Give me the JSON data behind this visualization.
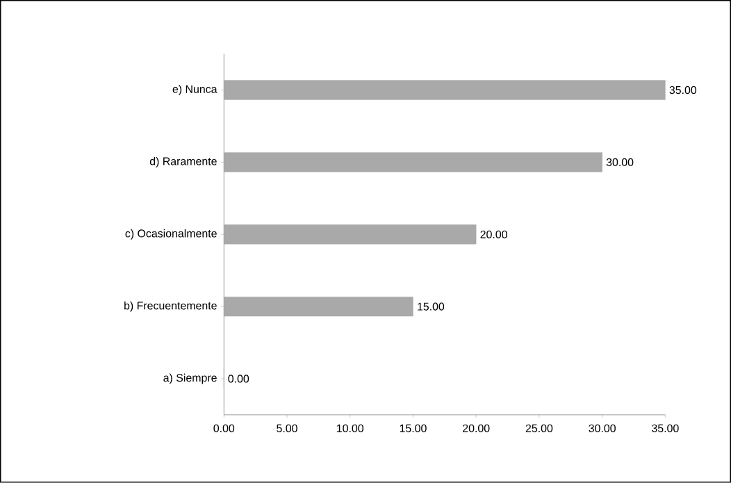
{
  "chart_data": {
    "type": "bar",
    "orientation": "horizontal",
    "categories": [
      "e) Nunca",
      "d) Raramente",
      "c) Ocasionalmente",
      "b) Frecuentemente",
      "a) Siempre"
    ],
    "values": [
      35,
      30,
      20,
      15,
      0
    ],
    "value_labels": [
      "35.00",
      "30.00",
      "20.00",
      "15.00",
      "0.00"
    ],
    "color": "#a9a9a9",
    "xlim": [
      0,
      35
    ],
    "xticks": [
      {
        "value": 0,
        "label": "0.00"
      },
      {
        "value": 5,
        "label": "5.00"
      },
      {
        "value": 10,
        "label": "10.00"
      },
      {
        "value": 15,
        "label": "15.00"
      },
      {
        "value": 20,
        "label": "20.00"
      },
      {
        "value": 25,
        "label": "25.00"
      },
      {
        "value": 30,
        "label": "30.00"
      },
      {
        "value": 35,
        "label": "35.00"
      }
    ],
    "grid": false
  }
}
